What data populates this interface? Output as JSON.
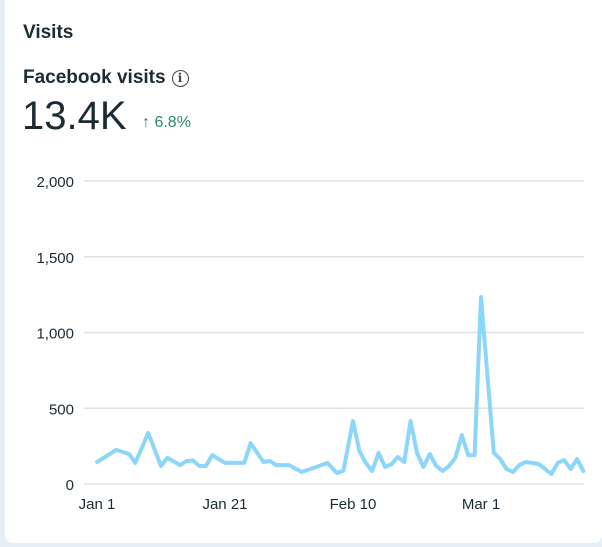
{
  "card": {
    "title": "Visits",
    "metric_label": "Facebook visits",
    "info_icon": "info-icon",
    "value": "13.4K",
    "delta_arrow": "↑",
    "delta": "6.8%",
    "delta_color": "#2a8a63"
  },
  "chart_data": {
    "type": "line",
    "title": "Facebook visits",
    "xlabel": "",
    "ylabel": "",
    "line_color": "#8dd6fb",
    "x_unit": "days since Jan 1",
    "ylim": [
      0,
      2000
    ],
    "xlim": [
      0,
      76
    ],
    "grid": true,
    "y_ticks": [
      {
        "value": 0,
        "label": "0"
      },
      {
        "value": 500,
        "label": "500"
      },
      {
        "value": 1000,
        "label": "1,000"
      },
      {
        "value": 1500,
        "label": "1,500"
      },
      {
        "value": 2000,
        "label": "2,000"
      }
    ],
    "x_ticks": [
      {
        "value": 0,
        "label": "Jan 1"
      },
      {
        "value": 20,
        "label": "Jan 21"
      },
      {
        "value": 40,
        "label": "Feb 10"
      },
      {
        "value": 60,
        "label": "Mar 1"
      }
    ],
    "series": [
      {
        "name": "Facebook visits",
        "points": [
          [
            0,
            145
          ],
          [
            1.5,
            185
          ],
          [
            3,
            225
          ],
          [
            5,
            198
          ],
          [
            6,
            139
          ],
          [
            8,
            337
          ],
          [
            10,
            119
          ],
          [
            11,
            172
          ],
          [
            13,
            125
          ],
          [
            14,
            152
          ],
          [
            15,
            155
          ],
          [
            16,
            119
          ],
          [
            17,
            119
          ],
          [
            18,
            191
          ],
          [
            20,
            139
          ],
          [
            23,
            139
          ],
          [
            24,
            270
          ],
          [
            26,
            145
          ],
          [
            27,
            152
          ],
          [
            28,
            125
          ],
          [
            30,
            125
          ],
          [
            32,
            79
          ],
          [
            34,
            108
          ],
          [
            36,
            139
          ],
          [
            37.5,
            72
          ],
          [
            38.5,
            88
          ],
          [
            40,
            416
          ],
          [
            41,
            218
          ],
          [
            42,
            139
          ],
          [
            43,
            86
          ],
          [
            44,
            205
          ],
          [
            45,
            112
          ],
          [
            46,
            130
          ],
          [
            47,
            178
          ],
          [
            48,
            145
          ],
          [
            49,
            416
          ],
          [
            50,
            205
          ],
          [
            51,
            112
          ],
          [
            52,
            198
          ],
          [
            53,
            119
          ],
          [
            54,
            86
          ],
          [
            55,
            119
          ],
          [
            56,
            172
          ],
          [
            57,
            323
          ],
          [
            58,
            191
          ],
          [
            59,
            191
          ],
          [
            60,
            1234
          ],
          [
            62,
            205
          ],
          [
            63,
            165
          ],
          [
            64,
            99
          ],
          [
            65,
            79
          ],
          [
            66,
            125
          ],
          [
            67,
            145
          ],
          [
            68,
            139
          ],
          [
            69,
            132
          ],
          [
            70,
            99
          ],
          [
            71,
            66
          ],
          [
            72,
            139
          ],
          [
            73,
            158
          ],
          [
            74,
            99
          ],
          [
            75,
            165
          ],
          [
            76,
            86
          ]
        ]
      }
    ]
  }
}
